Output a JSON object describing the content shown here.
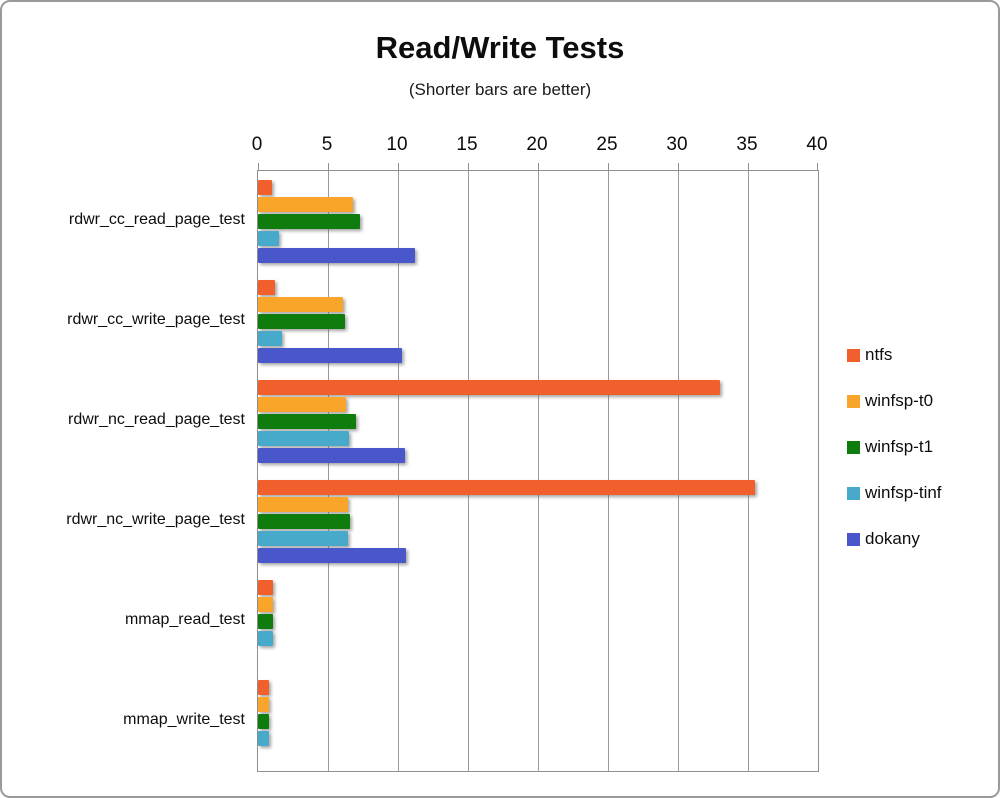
{
  "window": {
    "background": "#ffffff",
    "frame_border_color": "#9a9a9a"
  },
  "chart_data": {
    "type": "bar",
    "orientation": "horizontal",
    "title": "Read/Write Tests",
    "subtitle": "(Shorter bars are better)",
    "value_axis": {
      "position": "top",
      "min": 0,
      "max": 40,
      "tick_interval": 5,
      "ticks": [
        0,
        5,
        10,
        15,
        20,
        25,
        30,
        35,
        40
      ]
    },
    "grid": true,
    "gridline_color": "#9b9b9b",
    "categories": [
      "rdwr_cc_read_page_test",
      "rdwr_cc_write_page_test",
      "rdwr_nc_read_page_test",
      "rdwr_nc_write_page_test",
      "mmap_read_test",
      "mmap_write_test"
    ],
    "series": [
      {
        "name": "ntfs",
        "color": "#F15F2C",
        "values": [
          1.0,
          1.2,
          33.0,
          35.5,
          1.1,
          0.8
        ]
      },
      {
        "name": "winfsp-t0",
        "color": "#F9A42A",
        "values": [
          6.8,
          6.1,
          6.3,
          6.4,
          1.1,
          0.8
        ]
      },
      {
        "name": "winfsp-t1",
        "color": "#0E7D0E",
        "values": [
          7.3,
          6.2,
          7.0,
          6.6,
          1.1,
          0.8
        ]
      },
      {
        "name": "winfsp-tinf",
        "color": "#48AACA",
        "values": [
          1.5,
          1.7,
          6.5,
          6.4,
          1.1,
          0.8
        ]
      },
      {
        "name": "dokany",
        "color": "#4A57CB",
        "values": [
          11.2,
          10.3,
          10.5,
          10.6,
          0,
          0
        ]
      }
    ],
    "legend": {
      "position": "right",
      "entries": [
        "ntfs",
        "winfsp-t0",
        "winfsp-t1",
        "winfsp-tinf",
        "dokany"
      ]
    }
  }
}
